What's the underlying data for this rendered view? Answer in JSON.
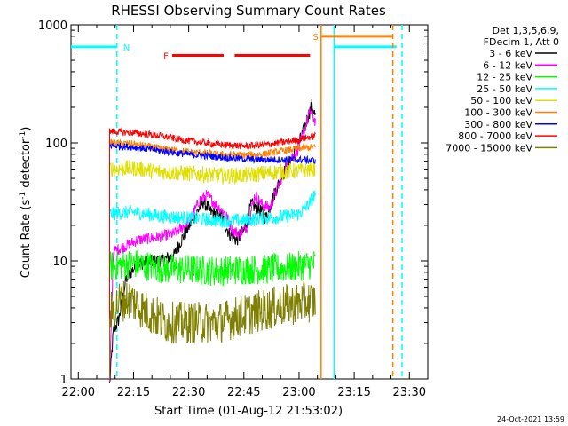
{
  "chart_data": {
    "type": "line",
    "title": "RHESSI Observing Summary Count Rates",
    "xlabel": "Start Time (01-Aug-12 21:53:02)",
    "ylabel": "Count Rate (s",
    "ylabel_sup1": "-1",
    "ylabel_mid": " detector",
    "ylabel_sup2": "-1",
    "ylabel_end": ")",
    "yscale": "log",
    "ylim": [
      1,
      1000
    ],
    "xlim_minutes": [
      -62,
      35
    ],
    "x_unit": "minutes relative to 23:00",
    "x_ticks": [
      {
        "v": -60,
        "label": "22:00"
      },
      {
        "v": -45,
        "label": "22:15"
      },
      {
        "v": -30,
        "label": "22:30"
      },
      {
        "v": -15,
        "label": "22:45"
      },
      {
        "v": 0,
        "label": "23:00"
      },
      {
        "v": 15,
        "label": "23:15"
      },
      {
        "v": 30,
        "label": "23:30"
      }
    ],
    "y_ticks": [
      {
        "v": 1,
        "label": "1"
      },
      {
        "v": 10,
        "label": "10"
      },
      {
        "v": 100,
        "label": "100"
      },
      {
        "v": 1000,
        "label": "1000"
      }
    ],
    "legend_header": [
      "Det 1,3,5,6,9,",
      "FDecim 1, Att 0"
    ],
    "series": [
      {
        "name": "3 - 6 keV",
        "color": "#000000",
        "noise": 0.06,
        "points": [
          [
            -51.5,
            0.9
          ],
          [
            -50.5,
            2.5
          ],
          [
            -49,
            3.2
          ],
          [
            -47,
            7
          ],
          [
            -44,
            9.5
          ],
          [
            -38,
            10
          ],
          [
            -34,
            11
          ],
          [
            -32,
            15
          ],
          [
            -29,
            22
          ],
          [
            -26,
            32
          ],
          [
            -24,
            26
          ],
          [
            -21,
            24
          ],
          [
            -19,
            17
          ],
          [
            -17,
            15
          ],
          [
            -15,
            18
          ],
          [
            -13,
            30
          ],
          [
            -11,
            28
          ],
          [
            -9,
            23
          ],
          [
            -7,
            35
          ],
          [
            -5,
            50
          ],
          [
            -3,
            65
          ],
          [
            -1,
            85
          ],
          [
            1,
            120
          ],
          [
            2.5,
            170
          ],
          [
            3.5,
            210
          ],
          [
            4.5,
            165
          ]
        ]
      },
      {
        "name": "6 - 12 keV",
        "color": "#ff00ff",
        "noise": 0.05,
        "points": [
          [
            -51.5,
            0.9
          ],
          [
            -50.5,
            12
          ],
          [
            -48,
            13
          ],
          [
            -44,
            15
          ],
          [
            -38,
            16
          ],
          [
            -34,
            17
          ],
          [
            -31,
            20
          ],
          [
            -29,
            24
          ],
          [
            -27,
            33
          ],
          [
            -25,
            36
          ],
          [
            -23,
            31
          ],
          [
            -20,
            25
          ],
          [
            -18,
            18
          ],
          [
            -16,
            17
          ],
          [
            -14,
            20
          ],
          [
            -12,
            36
          ],
          [
            -10,
            30
          ],
          [
            -8,
            28
          ],
          [
            -6,
            40
          ],
          [
            -4,
            58
          ],
          [
            -2,
            75
          ],
          [
            0,
            90
          ],
          [
            1.5,
            130
          ],
          [
            3,
            185
          ],
          [
            4.5,
            150
          ]
        ]
      },
      {
        "name": "12 - 25 keV",
        "color": "#00ff00",
        "noise": 0.13,
        "points": [
          [
            -51.5,
            9
          ],
          [
            -45,
            9.5
          ],
          [
            -36,
            8.5
          ],
          [
            -30,
            8.5
          ],
          [
            -22,
            8.2
          ],
          [
            -15,
            8.5
          ],
          [
            -8,
            8.5
          ],
          [
            -2,
            8.8
          ],
          [
            4.5,
            9.5
          ]
        ]
      },
      {
        "name": "25 - 50 keV",
        "color": "#00ffff",
        "noise": 0.06,
        "points": [
          [
            -51.5,
            25
          ],
          [
            -45,
            26
          ],
          [
            -38,
            24
          ],
          [
            -30,
            23
          ],
          [
            -22,
            22
          ],
          [
            -15,
            22
          ],
          [
            -10,
            23
          ],
          [
            -5,
            23.5
          ],
          [
            0,
            25
          ],
          [
            3,
            31
          ],
          [
            4.5,
            38
          ]
        ]
      },
      {
        "name": "50 - 100 keV",
        "color": "#e0e000",
        "noise": 0.07,
        "points": [
          [
            -51.5,
            60
          ],
          [
            -45,
            61
          ],
          [
            -38,
            57
          ],
          [
            -30,
            55
          ],
          [
            -22,
            53
          ],
          [
            -15,
            53
          ],
          [
            -10,
            55
          ],
          [
            -5,
            57
          ],
          [
            0,
            58
          ],
          [
            4.5,
            60
          ]
        ]
      },
      {
        "name": "100 - 300 keV",
        "color": "#ff8000",
        "noise": 0.03,
        "points": [
          [
            -51.5,
            100
          ],
          [
            -45,
            98
          ],
          [
            -38,
            90
          ],
          [
            -30,
            84
          ],
          [
            -22,
            80
          ],
          [
            -15,
            79
          ],
          [
            -10,
            80
          ],
          [
            -5,
            85
          ],
          [
            0,
            90
          ],
          [
            4.5,
            92
          ]
        ]
      },
      {
        "name": "300 - 800 keV",
        "color": "#0000ff",
        "noise": 0.03,
        "points": [
          [
            -51.5,
            95
          ],
          [
            -45,
            92
          ],
          [
            -38,
            86
          ],
          [
            -30,
            80
          ],
          [
            -22,
            76
          ],
          [
            -15,
            73
          ],
          [
            -10,
            72
          ],
          [
            -5,
            72
          ],
          [
            0,
            72
          ],
          [
            4.5,
            71
          ]
        ]
      },
      {
        "name": "800 - 7000 keV",
        "color": "#ff0000",
        "noise": 0.03,
        "points": [
          [
            -51.5,
            125
          ],
          [
            -45,
            122
          ],
          [
            -38,
            115
          ],
          [
            -30,
            104
          ],
          [
            -22,
            97
          ],
          [
            -15,
            94
          ],
          [
            -10,
            96
          ],
          [
            -5,
            100
          ],
          [
            0,
            107
          ],
          [
            4.5,
            115
          ]
        ]
      },
      {
        "name": "7000 - 15000 keV",
        "color": "#808000",
        "noise": 0.18,
        "points": [
          [
            -51.5,
            3.5
          ],
          [
            -49,
            4.5
          ],
          [
            -46,
            4.8
          ],
          [
            -42,
            3.8
          ],
          [
            -36,
            3.0
          ],
          [
            -30,
            3.0
          ],
          [
            -22,
            3.0
          ],
          [
            -16,
            3.4
          ],
          [
            -10,
            3.8
          ],
          [
            -4,
            4.2
          ],
          [
            4.5,
            4.6
          ]
        ]
      }
    ],
    "annotations": [
      {
        "type": "hline",
        "color": "#00ffff",
        "y": 650,
        "x0": -62,
        "x1": -49.5,
        "label": "N"
      },
      {
        "type": "vline",
        "color": "#00ffff",
        "x": -49.5,
        "dashed": true
      },
      {
        "type": "vline",
        "color": "#00ffff",
        "x": 9.5,
        "dashed": false
      },
      {
        "type": "hline",
        "color": "#00ffff",
        "y": 650,
        "x0": 9.5,
        "x1": 26.5
      },
      {
        "type": "vline",
        "color": "#00ffff",
        "x": 28.0,
        "dashed": true
      },
      {
        "type": "vline",
        "color": "#ff8000",
        "x": 6.0,
        "dashed": false
      },
      {
        "type": "hline",
        "color": "#ff8000",
        "y": 800,
        "x0": 6.0,
        "x1": 25.5,
        "label": "S"
      },
      {
        "type": "vline",
        "color": "#ff8000",
        "x": 25.5,
        "dashed": true
      },
      {
        "type": "hline",
        "color": "#ff0000",
        "y": 550,
        "x0": -34.5,
        "x1": -20.5,
        "label": "F"
      },
      {
        "type": "hline",
        "color": "#ff0000",
        "y": 550,
        "x0": -17.5,
        "x1": 3.0
      }
    ]
  },
  "stamp": "24-Oct-2021 13:59"
}
